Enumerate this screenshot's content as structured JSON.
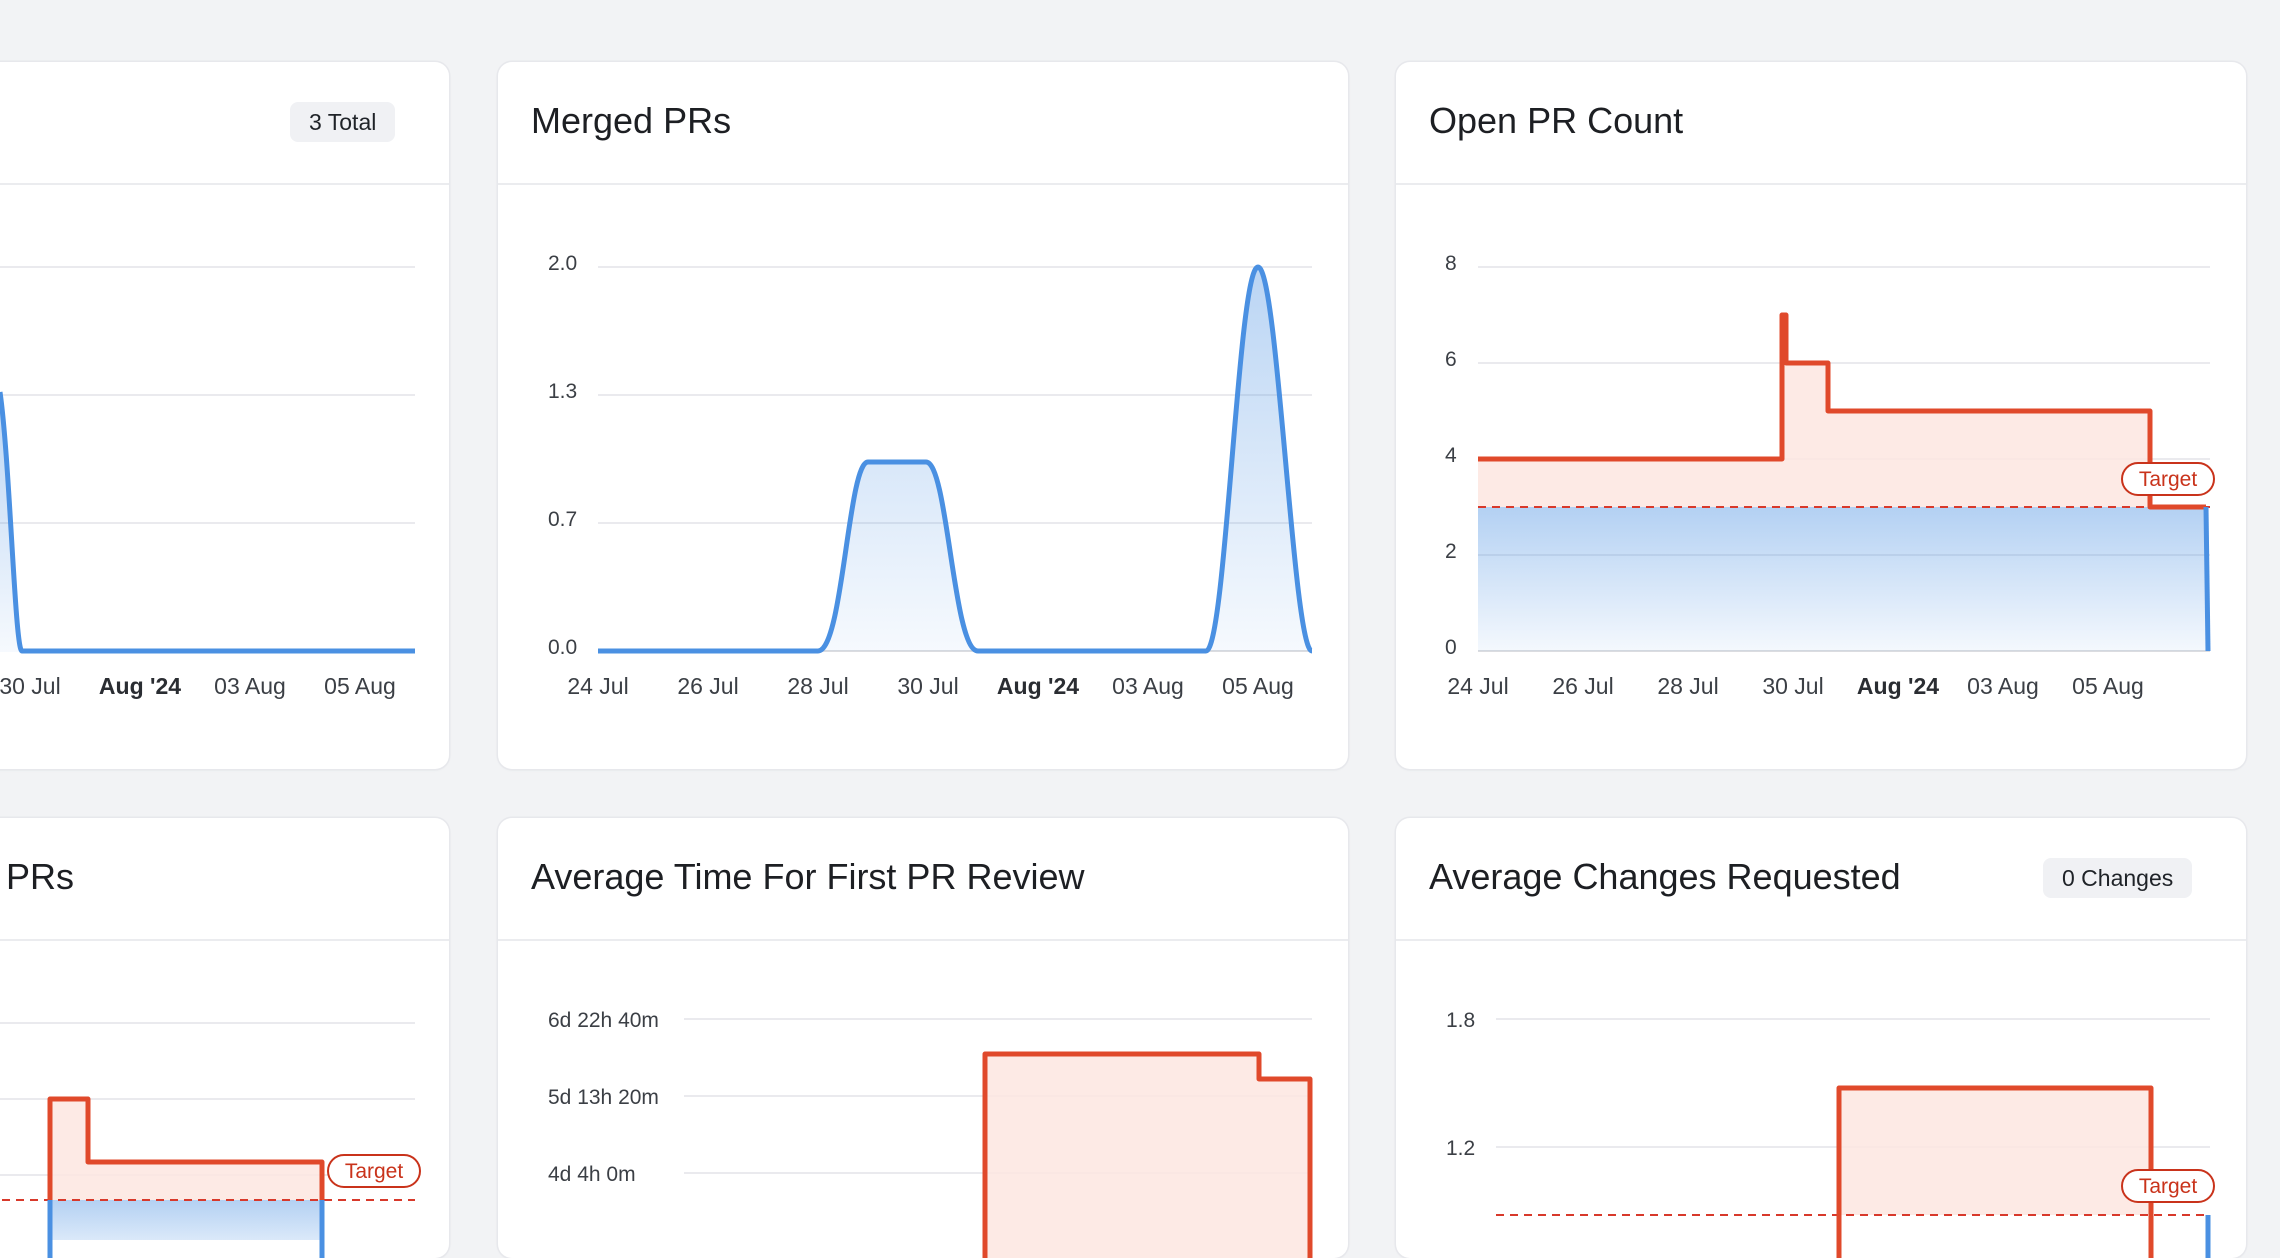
{
  "cards": {
    "total_prs": {
      "title": "",
      "badge": "3 Total"
    },
    "merged_prs": {
      "title": "Merged PRs"
    },
    "open_pr_count": {
      "title": "Open PR Count"
    },
    "partial_prs": {
      "title": "PRs"
    },
    "avg_first_review": {
      "title": "Average Time For First PR Review"
    },
    "avg_changes": {
      "title": "Average Changes Requested",
      "badge": "0 Changes"
    }
  },
  "target_label": "Target",
  "colors": {
    "series": "#4a90e2",
    "target": "#e0492b",
    "target_dash": "#d8392b",
    "background": "#f2f3f5"
  },
  "chart_data": [
    {
      "type": "area",
      "card": "total_prs",
      "x_ticks": [
        "30 Jul",
        "Aug '24",
        "03 Aug",
        "05 Aug"
      ],
      "bold_tick": "Aug '24",
      "y_ticks_visible": false,
      "series": [
        {
          "x": [
            "29 Jul",
            "30 Jul",
            "31 Jul",
            "Aug '24",
            "02 Aug",
            "03 Aug",
            "04 Aug",
            "05 Aug",
            "06 Aug"
          ],
          "values": [
            1.4,
            0,
            0,
            0,
            0,
            0,
            0,
            0,
            0
          ]
        }
      ],
      "grid": true
    },
    {
      "type": "area",
      "card": "merged_prs",
      "x_ticks": [
        "24 Jul",
        "26 Jul",
        "28 Jul",
        "30 Jul",
        "Aug '24",
        "03 Aug",
        "05 Aug"
      ],
      "bold_tick": "Aug '24",
      "y_ticks": [
        "0.0",
        "0.7",
        "1.3",
        "2.0"
      ],
      "ylim": [
        0,
        2
      ],
      "series": [
        {
          "x": [
            "24 Jul",
            "25 Jul",
            "26 Jul",
            "27 Jul",
            "28 Jul",
            "29 Jul",
            "30 Jul",
            "31 Jul",
            "Aug '24",
            "02 Aug",
            "03 Aug",
            "04 Aug",
            "05 Aug",
            "06 Aug"
          ],
          "values": [
            0,
            0,
            0,
            0,
            0,
            1,
            1,
            0,
            0,
            0,
            0,
            0,
            2,
            0
          ]
        }
      ],
      "grid": true
    },
    {
      "type": "area",
      "card": "open_pr_count",
      "x_ticks": [
        "24 Jul",
        "26 Jul",
        "28 Jul",
        "30 Jul",
        "Aug '24",
        "03 Aug",
        "05 Aug"
      ],
      "bold_tick": "Aug '24",
      "y_ticks": [
        "0",
        "2",
        "4",
        "6",
        "8"
      ],
      "ylim": [
        0,
        8
      ],
      "target": 3,
      "series": [
        {
          "x": [
            "24 Jul",
            "29 Jul",
            "29 Jul",
            "30 Jul",
            "31 Jul",
            "06 Aug",
            "07 Aug"
          ],
          "values": [
            4,
            4,
            7,
            6,
            5,
            5,
            3
          ]
        }
      ],
      "grid": true
    },
    {
      "type": "area",
      "card": "partial_prs",
      "y_ticks_visible": false,
      "target_visible": true,
      "grid": true
    },
    {
      "type": "area",
      "card": "avg_first_review",
      "y_ticks": [
        "4d 4h 0m",
        "5d 13h 20m",
        "6d 22h 40m"
      ],
      "grid": true
    },
    {
      "type": "area",
      "card": "avg_changes",
      "y_ticks": [
        "1.2",
        "1.8"
      ],
      "target_visible": true,
      "grid": true
    }
  ]
}
